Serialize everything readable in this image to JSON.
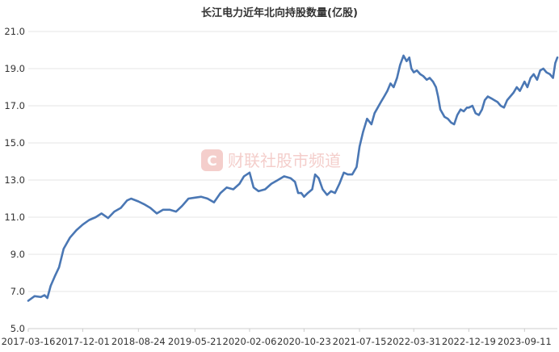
{
  "watermark": {
    "text": "财联社股市频道",
    "icon": "cls-logo-icon",
    "color": "#f3c9c6"
  },
  "chart_data": {
    "type": "line",
    "title": "长江电力近年北向持股数量(亿股)",
    "xlabel": "",
    "ylabel": "",
    "ylim": [
      5.0,
      21.0
    ],
    "yticks": [
      "5.0",
      "7.0",
      "9.0",
      "11.0",
      "13.0",
      "15.0",
      "17.0",
      "19.0",
      "21.0"
    ],
    "xticks": [
      "2017-03-16",
      "2017-12-01",
      "2018-08-24",
      "2019-05-21",
      "2020-02-06",
      "2020-10-23",
      "2021-07-15",
      "2022-03-31",
      "2022-12-19",
      "2023-09-11"
    ],
    "grid": true,
    "legend": "none",
    "line_color": "#4a77b4",
    "series": [
      {
        "x": [
          "2017-03-16",
          "2017-04-15",
          "2017-05-15",
          "2017-06-01",
          "2017-06-15",
          "2017-07-01",
          "2017-07-20",
          "2017-08-10",
          "2017-09-01",
          "2017-10-01",
          "2017-11-01",
          "2017-12-01",
          "2018-01-01",
          "2018-02-01",
          "2018-03-01",
          "2018-04-01",
          "2018-05-01",
          "2018-06-01",
          "2018-07-01",
          "2018-07-20",
          "2018-08-24",
          "2018-09-20",
          "2018-10-20",
          "2018-11-20",
          "2018-12-20",
          "2019-01-20",
          "2019-02-20",
          "2019-03-20",
          "2019-04-20",
          "2019-05-21",
          "2019-06-20",
          "2019-07-20",
          "2019-08-20",
          "2019-09-20",
          "2019-10-20",
          "2019-11-20",
          "2019-12-20",
          "2020-01-10",
          "2020-02-06",
          "2020-02-25",
          "2020-03-20",
          "2020-04-20",
          "2020-05-20",
          "2020-06-20",
          "2020-07-20",
          "2020-08-20",
          "2020-09-10",
          "2020-09-25",
          "2020-10-10",
          "2020-10-23",
          "2020-11-10",
          "2020-12-01",
          "2020-12-15",
          "2021-01-01",
          "2021-01-20",
          "2021-02-10",
          "2021-03-01",
          "2021-03-20",
          "2021-04-10",
          "2021-05-01",
          "2021-05-20",
          "2021-06-10",
          "2021-07-01",
          "2021-07-15",
          "2021-08-01",
          "2021-08-20",
          "2021-09-10",
          "2021-09-25",
          "2021-10-10",
          "2021-10-25",
          "2021-11-10",
          "2021-11-25",
          "2021-12-10",
          "2021-12-25",
          "2022-01-10",
          "2022-01-25",
          "2022-02-10",
          "2022-02-25",
          "2022-03-10",
          "2022-03-20",
          "2022-03-31",
          "2022-04-15",
          "2022-05-01",
          "2022-05-15",
          "2022-06-01",
          "2022-06-15",
          "2022-07-01",
          "2022-07-15",
          "2022-07-25",
          "2022-08-05",
          "2022-08-15",
          "2022-08-25",
          "2022-09-10",
          "2022-09-25",
          "2022-10-10",
          "2022-10-25",
          "2022-11-10",
          "2022-11-25",
          "2022-12-10",
          "2022-12-19",
          "2023-01-05",
          "2023-01-20",
          "2023-02-05",
          "2023-02-20",
          "2023-03-05",
          "2023-03-20",
          "2023-04-05",
          "2023-04-20",
          "2023-05-05",
          "2023-05-20",
          "2023-06-05",
          "2023-06-20",
          "2023-07-05",
          "2023-07-20",
          "2023-08-05",
          "2023-08-20",
          "2023-09-11",
          "2023-09-25",
          "2023-10-10",
          "2023-10-25",
          "2023-11-10",
          "2023-11-25",
          "2023-12-10",
          "2023-12-25",
          "2024-01-10",
          "2024-01-25",
          "2024-02-05",
          "2024-02-15"
        ],
        "values": [
          6.5,
          6.75,
          6.7,
          6.8,
          6.65,
          7.3,
          7.8,
          8.3,
          9.3,
          9.9,
          10.3,
          10.6,
          10.85,
          11.0,
          11.2,
          10.95,
          11.3,
          11.5,
          11.9,
          12.0,
          11.85,
          11.7,
          11.5,
          11.2,
          11.4,
          11.4,
          11.3,
          11.6,
          12.0,
          12.05,
          12.1,
          12.0,
          11.8,
          12.3,
          12.6,
          12.5,
          12.8,
          13.2,
          13.4,
          12.6,
          12.4,
          12.5,
          12.8,
          13.0,
          13.2,
          13.1,
          12.9,
          12.3,
          12.3,
          12.1,
          12.3,
          12.5,
          13.3,
          13.1,
          12.5,
          12.2,
          12.4,
          12.3,
          12.8,
          13.4,
          13.3,
          13.3,
          13.7,
          14.8,
          15.6,
          16.3,
          16.0,
          16.6,
          16.9,
          17.2,
          17.5,
          17.8,
          18.2,
          18.0,
          18.5,
          19.2,
          19.7,
          19.4,
          19.6,
          19.0,
          18.8,
          18.9,
          18.7,
          18.6,
          18.4,
          18.5,
          18.3,
          18.0,
          17.5,
          16.8,
          16.6,
          16.4,
          16.3,
          16.1,
          16.0,
          16.5,
          16.8,
          16.7,
          16.9,
          16.9,
          17.0,
          16.6,
          16.5,
          16.8,
          17.3,
          17.5,
          17.4,
          17.3,
          17.2,
          17.0,
          16.9,
          17.3,
          17.5,
          17.7,
          18.0,
          17.8,
          18.3,
          18.0,
          18.5,
          18.7,
          18.4,
          18.9,
          19.0,
          18.8,
          18.7,
          18.5,
          19.3,
          19.6
        ]
      }
    ]
  }
}
